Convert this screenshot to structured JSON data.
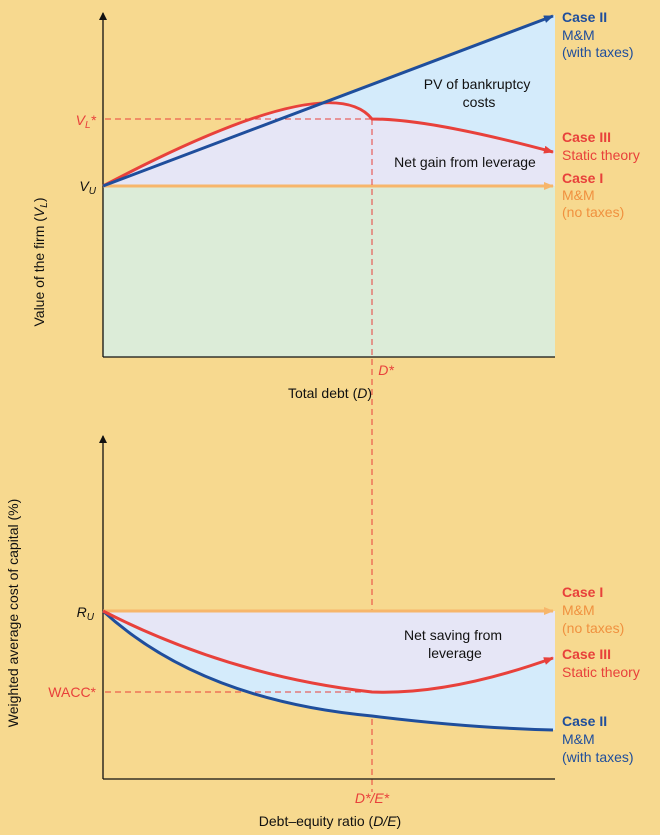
{
  "colors": {
    "background": "#f7d98f",
    "blue": "#1f4e9c",
    "red": "#e8413b",
    "orange": "#f7b66b",
    "light_blue_fill": "#d4ebfb",
    "lavender_fill": "#e6e6f6",
    "green_fill": "#dcecd8"
  },
  "top": {
    "y_axis_label_parts": [
      "Value of the firm (",
      "V",
      "L",
      ")"
    ],
    "x_axis_label_parts": [
      "Total debt (",
      "D",
      ")"
    ],
    "vl_star": {
      "main": "V",
      "sub": "L",
      "star": "*"
    },
    "vu": {
      "main": "V",
      "sub": "U"
    },
    "d_star": "D*",
    "pv_label": [
      "PV of bankruptcy",
      "costs"
    ],
    "net_gain_label": "Net gain from leverage",
    "case2": [
      "Case II",
      "M&M",
      "(with taxes)"
    ],
    "case3": [
      "Case III",
      "Static theory"
    ],
    "case1": [
      "Case I",
      "M&M",
      "(no taxes)"
    ]
  },
  "bottom": {
    "y_axis_label": "Weighted average cost of capital (%)",
    "x_axis_label_parts": [
      "Debt–equity ratio (",
      "D/E",
      ")"
    ],
    "ru": {
      "main": "R",
      "sub": "U"
    },
    "wacc_star": "WACC*",
    "de_star": "D*/E*",
    "net_saving_label": [
      "Net saving from",
      "leverage"
    ],
    "case1": [
      "Case I",
      "M&M",
      "(no taxes)"
    ],
    "case3": [
      "Case III",
      "Static theory"
    ],
    "case2": [
      "Case II",
      "M&M",
      "(with taxes)"
    ]
  }
}
